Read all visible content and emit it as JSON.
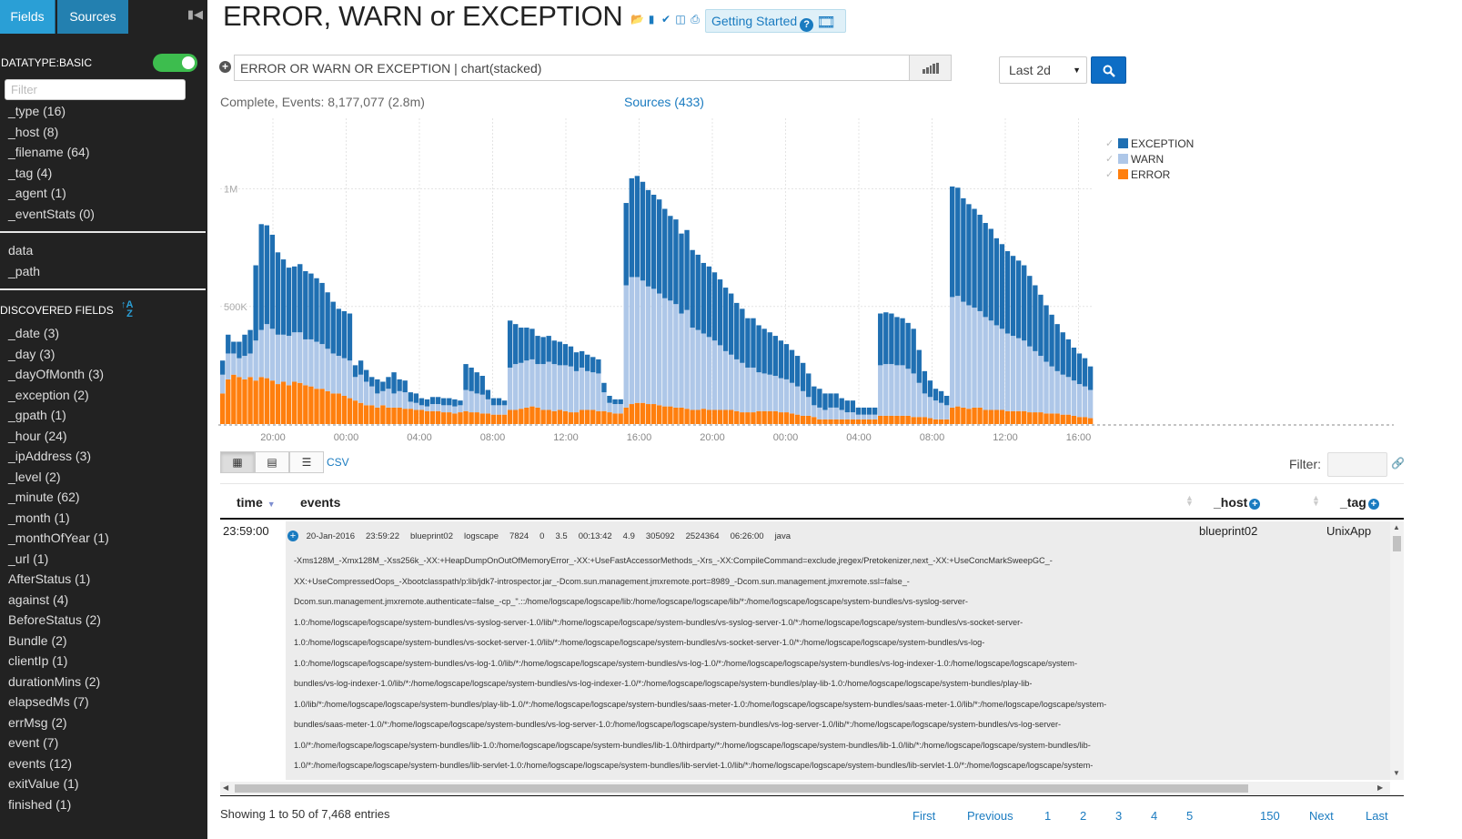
{
  "sidebar": {
    "tabs": {
      "fields": "Fields",
      "sources": "Sources"
    },
    "datatype_label": "DATATYPE:BASIC",
    "datatype_enabled": true,
    "filter_placeholder": "Filter",
    "basic_fields": [
      "_type (16)",
      "_host (8)",
      "_filename (64)",
      "_tag (4)",
      "_agent (1)",
      "_eventStats (0)"
    ],
    "extra_fields": [
      "data",
      "_path"
    ],
    "discovered_label": "DISCOVERED FIELDS",
    "discovered_fields": [
      "_date (3)",
      "_day (3)",
      "_dayOfMonth (3)",
      "_exception (2)",
      "_gpath (1)",
      "_hour (24)",
      "_ipAddress (3)",
      "_level (2)",
      "_minute (62)",
      "_month (1)",
      "_monthOfYear (1)",
      "_url (1)",
      "AfterStatus (1)",
      "against (4)",
      "BeforeStatus (2)",
      "Bundle (2)",
      "clientIp (1)",
      "durationMins (2)",
      "elapsedMs (7)",
      "errMsg (2)",
      "event (7)",
      "events (12)",
      "exitValue (1)",
      "finished (1)"
    ]
  },
  "header": {
    "title": "ERROR, WARN or EXCEPTION",
    "getting_started": "Getting Started"
  },
  "search": {
    "query": "ERROR OR WARN OR EXCEPTION | chart(stacked)",
    "time_range": "Last 2d"
  },
  "status": {
    "text": "Complete, Events: 8,177,077 (2.8m)",
    "sources": "Sources (433)"
  },
  "chart_data": {
    "type": "bar",
    "stacked": true,
    "x_tick_labels": [
      "20:00",
      "00:00",
      "04:00",
      "08:00",
      "12:00",
      "16:00",
      "20:00",
      "00:00",
      "04:00",
      "08:00",
      "12:00",
      "16:00"
    ],
    "y_tick_labels": [
      "500K",
      "1M"
    ],
    "ylim": [
      0,
      1300000
    ],
    "legend": [
      "EXCEPTION",
      "WARN",
      "ERROR"
    ],
    "legend_position": "top-right",
    "colors": {
      "EXCEPTION": "#1f6fb2",
      "WARN": "#aec7e8",
      "ERROR": "#ff7f0e"
    },
    "series": [
      {
        "name": "ERROR",
        "values": [
          130000,
          190000,
          210000,
          200000,
          190000,
          200000,
          185000,
          200000,
          195000,
          185000,
          170000,
          180000,
          165000,
          180000,
          175000,
          165000,
          160000,
          150000,
          150000,
          140000,
          130000,
          130000,
          120000,
          110000,
          100000,
          90000,
          80000,
          80000,
          70000,
          80000,
          70000,
          70000,
          70000,
          65000,
          65000,
          60000,
          60000,
          55000,
          55000,
          55000,
          50000,
          50000,
          45000,
          50000,
          55000,
          50000,
          50000,
          45000,
          45000,
          40000,
          40000,
          40000,
          60000,
          60000,
          65000,
          70000,
          75000,
          70000,
          60000,
          60000,
          55000,
          60000,
          55000,
          50000,
          50000,
          60000,
          60000,
          60000,
          55000,
          55000,
          50000,
          45000,
          45000,
          70000,
          85000,
          90000,
          90000,
          85000,
          85000,
          80000,
          75000,
          75000,
          70000,
          70000,
          65000,
          60000,
          60000,
          65000,
          60000,
          60000,
          60000,
          60000,
          60000,
          55000,
          50000,
          50000,
          50000,
          55000,
          55000,
          55000,
          55000,
          50000,
          50000,
          45000,
          40000,
          35000,
          35000,
          30000,
          20000,
          20000,
          20000,
          20000,
          20000,
          20000,
          20000,
          20000,
          20000,
          20000,
          20000,
          35000,
          35000,
          35000,
          35000,
          35000,
          35000,
          30000,
          30000,
          30000,
          25000,
          20000,
          20000,
          20000,
          70000,
          75000,
          70000,
          65000,
          70000,
          70000,
          60000,
          60000,
          60000,
          60000,
          55000,
          55000,
          55000,
          55000,
          50000,
          50000,
          50000,
          45000,
          45000,
          45000,
          40000,
          40000,
          35000,
          30000,
          30000,
          25000
        ]
      },
      {
        "name": "WARN",
        "values": [
          80000,
          110000,
          90000,
          80000,
          100000,
          100000,
          170000,
          200000,
          230000,
          220000,
          210000,
          200000,
          210000,
          210000,
          215000,
          195000,
          200000,
          200000,
          190000,
          180000,
          170000,
          160000,
          160000,
          160000,
          100000,
          120000,
          100000,
          80000,
          60000,
          60000,
          80000,
          60000,
          70000,
          70000,
          30000,
          30000,
          20000,
          20000,
          30000,
          30000,
          30000,
          30000,
          30000,
          30000,
          90000,
          90000,
          80000,
          80000,
          60000,
          40000,
          40000,
          40000,
          180000,
          195000,
          195000,
          200000,
          200000,
          185000,
          195000,
          205000,
          200000,
          190000,
          195000,
          195000,
          175000,
          180000,
          165000,
          160000,
          160000,
          80000,
          40000,
          40000,
          40000,
          520000,
          540000,
          535000,
          520000,
          500000,
          490000,
          475000,
          460000,
          450000,
          440000,
          400000,
          420000,
          350000,
          340000,
          320000,
          310000,
          295000,
          275000,
          250000,
          235000,
          220000,
          210000,
          190000,
          190000,
          165000,
          160000,
          155000,
          150000,
          145000,
          140000,
          130000,
          120000,
          105000,
          80000,
          50000,
          50000,
          40000,
          50000,
          50000,
          40000,
          30000,
          30000,
          20000,
          20000,
          20000,
          20000,
          215000,
          220000,
          220000,
          215000,
          215000,
          200000,
          185000,
          145000,
          100000,
          90000,
          80000,
          70000,
          60000,
          470000,
          470000,
          450000,
          440000,
          425000,
          410000,
          395000,
          380000,
          360000,
          345000,
          330000,
          320000,
          310000,
          300000,
          280000,
          260000,
          240000,
          220000,
          200000,
          180000,
          170000,
          160000,
          150000,
          140000,
          130000,
          120000
        ]
      },
      {
        "name": "EXCEPTION",
        "values": [
          60000,
          80000,
          50000,
          70000,
          90000,
          100000,
          320000,
          450000,
          420000,
          400000,
          350000,
          320000,
          290000,
          280000,
          290000,
          290000,
          280000,
          270000,
          260000,
          240000,
          220000,
          200000,
          200000,
          200000,
          50000,
          60000,
          50000,
          40000,
          60000,
          40000,
          50000,
          90000,
          50000,
          50000,
          40000,
          40000,
          30000,
          30000,
          30000,
          30000,
          30000,
          30000,
          30000,
          20000,
          110000,
          100000,
          90000,
          80000,
          40000,
          30000,
          30000,
          20000,
          200000,
          170000,
          150000,
          140000,
          130000,
          120000,
          115000,
          110000,
          100000,
          100000,
          90000,
          85000,
          80000,
          70000,
          70000,
          65000,
          60000,
          40000,
          30000,
          20000,
          20000,
          350000,
          420000,
          430000,
          420000,
          410000,
          400000,
          400000,
          380000,
          360000,
          360000,
          340000,
          340000,
          330000,
          320000,
          300000,
          300000,
          290000,
          280000,
          270000,
          260000,
          240000,
          230000,
          210000,
          210000,
          200000,
          190000,
          180000,
          170000,
          160000,
          150000,
          140000,
          130000,
          120000,
          100000,
          80000,
          80000,
          70000,
          60000,
          60000,
          50000,
          50000,
          50000,
          30000,
          30000,
          30000,
          30000,
          220000,
          220000,
          215000,
          205000,
          200000,
          195000,
          190000,
          140000,
          95000,
          70000,
          50000,
          50000,
          40000,
          470000,
          460000,
          440000,
          430000,
          420000,
          410000,
          400000,
          390000,
          370000,
          360000,
          350000,
          340000,
          330000,
          320000,
          300000,
          280000,
          260000,
          240000,
          220000,
          200000,
          180000,
          160000,
          140000,
          130000,
          120000,
          100000
        ]
      }
    ]
  },
  "table_toolbar": {
    "csv": "CSV",
    "filter_label": "Filter:"
  },
  "table": {
    "columns": {
      "time": "time",
      "events": "events",
      "host": "_host",
      "tag": "_tag"
    },
    "row": {
      "time": "23:59:00",
      "host": "blueprint02",
      "tag": "UnixApp",
      "event_fields": [
        "20-Jan-2016",
        "23:59:22",
        "blueprint02",
        "logscape",
        "7824",
        "0",
        "3.5",
        "00:13:42",
        "4.9",
        "305092",
        "2524364",
        "06:26:00",
        "java"
      ],
      "event_lines": [
        "-Xms128M_-Xmx128M_-Xss256k_-XX:+HeapDumpOnOutOfMemoryError_-XX:+UseFastAccessorMethods_-Xrs_-XX:CompileCommand=exclude,jregex/Pretokenizer,next_-XX:+UseConcMarkSweepGC_-",
        "XX:+UseCompressedOops_-Xbootclasspath/p:lib/jdk7-introspector.jar_-Dcom.sun.management.jmxremote.port=8989_-Dcom.sun.management.jmxremote.ssl=false_-",
        "Dcom.sun.management.jmxremote.authenticate=false_-cp_\".::/home/logscape/logscape/lib:/home/logscape/logscape/lib/*:/home/logscape/logscape/system-bundles/vs-syslog-server-",
        "1.0:/home/logscape/logscape/system-bundles/vs-syslog-server-1.0/lib/*:/home/logscape/logscape/system-bundles/vs-syslog-server-1.0/*:/home/logscape/logscape/system-bundles/vs-socket-server-",
        "1.0:/home/logscape/logscape/system-bundles/vs-socket-server-1.0/lib/*:/home/logscape/logscape/system-bundles/vs-socket-server-1.0/*:/home/logscape/logscape/system-bundles/vs-log-",
        "1.0:/home/logscape/logscape/system-bundles/vs-log-1.0/lib/*:/home/logscape/logscape/system-bundles/vs-log-1.0/*:/home/logscape/logscape/system-bundles/vs-log-indexer-1.0:/home/logscape/logscape/system-",
        "bundles/vs-log-indexer-1.0/lib/*:/home/logscape/logscape/system-bundles/vs-log-indexer-1.0/*:/home/logscape/logscape/system-bundles/play-lib-1.0:/home/logscape/logscape/system-bundles/play-lib-",
        "1.0/lib/*:/home/logscape/logscape/system-bundles/play-lib-1.0/*:/home/logscape/logscape/system-bundles/saas-meter-1.0:/home/logscape/logscape/system-bundles/saas-meter-1.0/lib/*:/home/logscape/logscape/system-",
        "bundles/saas-meter-1.0/*:/home/logscape/logscape/system-bundles/vs-log-server-1.0:/home/logscape/logscape/system-bundles/vs-log-server-1.0/lib/*:/home/logscape/logscape/system-bundles/vs-log-server-",
        "1.0/*:/home/logscape/logscape/system-bundles/lib-1.0:/home/logscape/logscape/system-bundles/lib-1.0/thirdparty/*:/home/logscape/logscape/system-bundles/lib-1.0/lib/*:/home/logscape/logscape/system-bundles/lib-",
        "1.0/*:/home/logscape/logscape/system-bundles/lib-servlet-1.0:/home/logscape/logscape/system-bundles/lib-servlet-1.0/lib/*:/home/logscape/logscape/system-bundles/lib-servlet-1.0/*:/home/logscape/logscape/system-"
      ]
    }
  },
  "footer": {
    "showing": "Showing 1 to 50 of 7,468 entries",
    "pager": [
      "First",
      "Previous",
      "1",
      "2",
      "3",
      "4",
      "5",
      "150",
      "Next",
      "Last"
    ]
  }
}
